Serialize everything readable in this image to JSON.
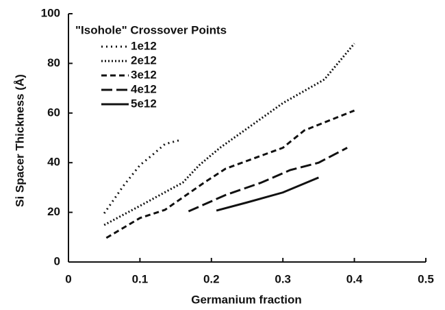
{
  "chart_data": {
    "type": "line",
    "legend_title": "\"Isohole\" Crossover Points",
    "xlabel": "Germanium fraction",
    "ylabel": "Si Spacer Thickness (Å)",
    "xlim": [
      0,
      0.5
    ],
    "xticks": [
      0,
      0.1,
      0.2,
      0.3,
      0.4,
      0.5
    ],
    "ylim": [
      0,
      100
    ],
    "yticks": [
      0,
      20,
      40,
      60,
      80,
      100
    ],
    "legend": "upper left",
    "series": [
      {
        "name": "1e12",
        "color": "#111111",
        "dash": "sparse-dot",
        "x": [
          0.05,
          0.077,
          0.1,
          0.117,
          0.135,
          0.155
        ],
        "values": [
          19.6,
          30.7,
          39,
          43,
          47.5,
          49
        ]
      },
      {
        "name": "2e12",
        "color": "#111111",
        "dash": "dot",
        "x": [
          0.05,
          0.1,
          0.16,
          0.183,
          0.212,
          0.3,
          0.358,
          0.4
        ],
        "values": [
          14.9,
          22.6,
          32,
          39,
          46,
          64,
          73.5,
          88
        ]
      },
      {
        "name": "3e12",
        "color": "#111111",
        "dash": "short-dash",
        "x": [
          0.053,
          0.1,
          0.135,
          0.19,
          0.22,
          0.3,
          0.33,
          0.4
        ],
        "values": [
          9.7,
          17.7,
          21,
          32,
          37.6,
          46,
          53,
          61
        ]
      },
      {
        "name": "4e12",
        "color": "#111111",
        "dash": "long-dash",
        "x": [
          0.168,
          0.22,
          0.27,
          0.31,
          0.35,
          0.39
        ],
        "values": [
          20.4,
          27,
          32,
          37,
          40,
          46
        ]
      },
      {
        "name": "5e12",
        "color": "#111111",
        "dash": "solid",
        "x": [
          0.207,
          0.25,
          0.3,
          0.35
        ],
        "values": [
          20.7,
          24,
          28,
          34
        ]
      }
    ]
  }
}
